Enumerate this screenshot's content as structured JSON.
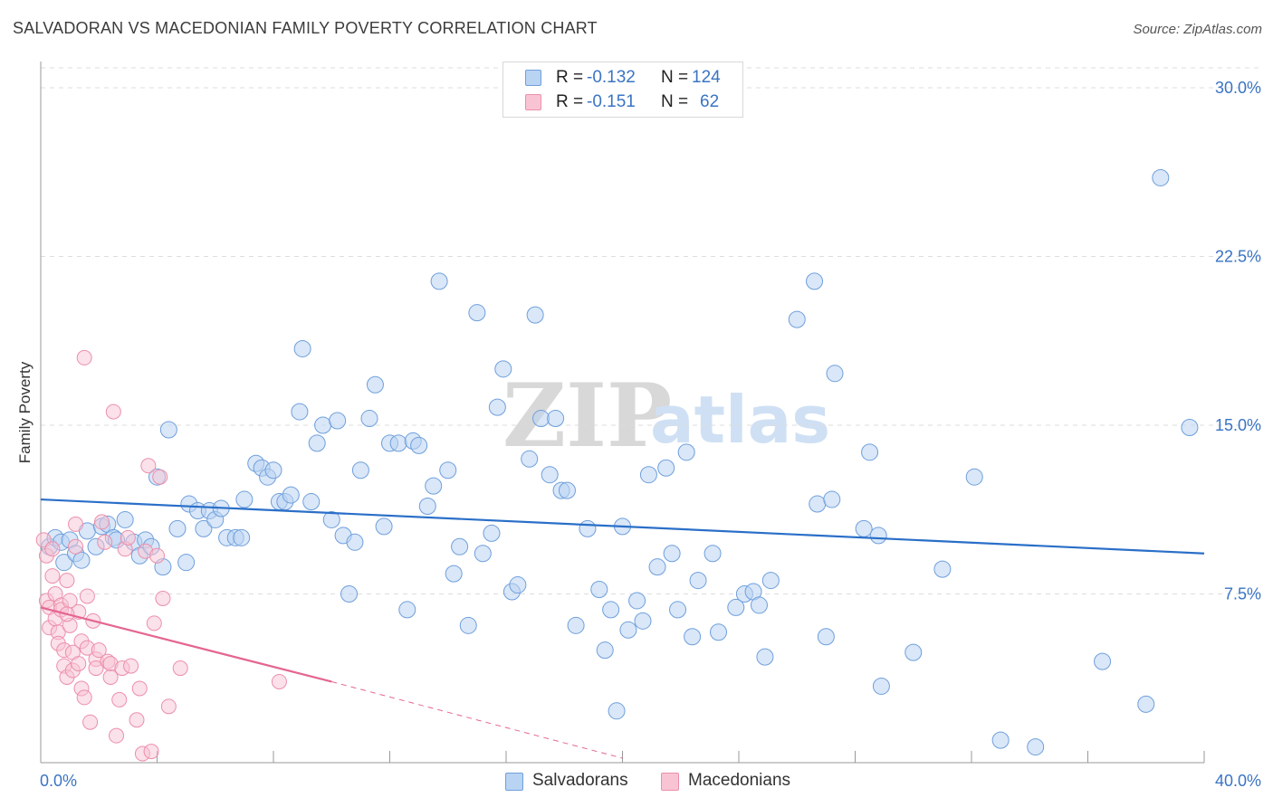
{
  "title": "SALVADORAN VS MACEDONIAN FAMILY POVERTY CORRELATION CHART",
  "source": "Source: ZipAtlas.com",
  "watermark": {
    "zip": "ZIP",
    "atlas": "atlas"
  },
  "legend": {
    "r_label": "R =",
    "n_label": "N =",
    "series": [
      {
        "name": "Salvadorans",
        "r": "-0.132",
        "n": "124"
      },
      {
        "name": "Macedonians",
        "r": "-0.151",
        "n": "62"
      }
    ]
  },
  "colors": {
    "blue_fill": "#b9d3f3",
    "blue_stroke": "#6f9fdc",
    "blue_line": "#2a6fc8",
    "pink_fill": "#f8c4d3",
    "pink_stroke": "#ec8fab",
    "pink_line": "#e46690",
    "axis_label": "#3a74c4",
    "grid": "#dddddd"
  },
  "chart_data": {
    "type": "scatter",
    "title": "SALVADORAN VS MACEDONIAN FAMILY POVERTY CORRELATION CHART",
    "xlabel": "",
    "ylabel": "Family Poverty",
    "xlim": [
      0,
      40
    ],
    "ylim": [
      0,
      30
    ],
    "x_tick_labels": [
      "0.0%",
      "40.0%"
    ],
    "y_ticks": [
      7.5,
      15.0,
      22.5,
      30.0
    ],
    "y_tick_labels": [
      "7.5%",
      "15.0%",
      "22.5%",
      "30.0%"
    ],
    "series": [
      {
        "name": "Salvadorans",
        "trend": {
          "x": [
            0,
            40
          ],
          "y": [
            11.7,
            9.3
          ]
        },
        "points": [
          [
            0.3,
            9.6
          ],
          [
            0.5,
            10.0
          ],
          [
            0.7,
            9.8
          ],
          [
            1.0,
            9.9
          ],
          [
            0.8,
            8.9
          ],
          [
            1.2,
            9.3
          ],
          [
            1.4,
            9.0
          ],
          [
            1.6,
            10.3
          ],
          [
            1.9,
            9.6
          ],
          [
            2.1,
            10.5
          ],
          [
            2.3,
            10.6
          ],
          [
            2.5,
            10.0
          ],
          [
            2.6,
            9.9
          ],
          [
            2.9,
            10.8
          ],
          [
            3.2,
            9.8
          ],
          [
            3.4,
            9.2
          ],
          [
            3.6,
            9.9
          ],
          [
            3.8,
            9.6
          ],
          [
            4.2,
            8.7
          ],
          [
            4.4,
            14.8
          ],
          [
            4.0,
            12.7
          ],
          [
            4.7,
            10.4
          ],
          [
            5.0,
            8.9
          ],
          [
            5.1,
            11.5
          ],
          [
            5.4,
            11.2
          ],
          [
            5.6,
            10.4
          ],
          [
            5.8,
            11.2
          ],
          [
            6.0,
            10.8
          ],
          [
            6.2,
            11.3
          ],
          [
            6.4,
            10.0
          ],
          [
            6.7,
            10.0
          ],
          [
            6.9,
            10.0
          ],
          [
            7.0,
            11.7
          ],
          [
            7.4,
            13.3
          ],
          [
            7.6,
            13.1
          ],
          [
            7.8,
            12.7
          ],
          [
            8.0,
            13.0
          ],
          [
            8.2,
            11.6
          ],
          [
            8.4,
            11.6
          ],
          [
            8.6,
            11.9
          ],
          [
            8.9,
            15.6
          ],
          [
            9.0,
            18.4
          ],
          [
            9.3,
            11.6
          ],
          [
            9.5,
            14.2
          ],
          [
            9.7,
            15.0
          ],
          [
            10.0,
            10.8
          ],
          [
            10.2,
            15.2
          ],
          [
            10.4,
            10.1
          ],
          [
            10.6,
            7.5
          ],
          [
            10.8,
            9.8
          ],
          [
            11.0,
            13.0
          ],
          [
            11.3,
            15.3
          ],
          [
            11.5,
            16.8
          ],
          [
            11.8,
            10.5
          ],
          [
            12.0,
            14.2
          ],
          [
            12.3,
            14.2
          ],
          [
            12.6,
            6.8
          ],
          [
            12.8,
            14.3
          ],
          [
            13.0,
            14.1
          ],
          [
            13.3,
            11.4
          ],
          [
            13.5,
            12.3
          ],
          [
            13.7,
            21.4
          ],
          [
            14.0,
            13.0
          ],
          [
            14.2,
            8.4
          ],
          [
            14.4,
            9.6
          ],
          [
            14.7,
            6.1
          ],
          [
            15.0,
            20.0
          ],
          [
            15.2,
            9.3
          ],
          [
            15.5,
            10.2
          ],
          [
            15.7,
            15.8
          ],
          [
            15.9,
            17.5
          ],
          [
            16.2,
            7.6
          ],
          [
            16.4,
            7.9
          ],
          [
            16.8,
            13.5
          ],
          [
            17.0,
            19.9
          ],
          [
            17.2,
            15.3
          ],
          [
            17.5,
            12.8
          ],
          [
            17.7,
            15.3
          ],
          [
            17.9,
            12.1
          ],
          [
            18.1,
            12.1
          ],
          [
            18.4,
            6.1
          ],
          [
            18.8,
            10.4
          ],
          [
            19.2,
            7.7
          ],
          [
            19.4,
            5.0
          ],
          [
            19.6,
            6.8
          ],
          [
            19.8,
            2.3
          ],
          [
            20.0,
            10.5
          ],
          [
            20.2,
            5.9
          ],
          [
            20.5,
            7.2
          ],
          [
            20.7,
            6.3
          ],
          [
            20.9,
            12.8
          ],
          [
            21.2,
            8.7
          ],
          [
            21.5,
            13.1
          ],
          [
            21.7,
            9.3
          ],
          [
            21.9,
            6.8
          ],
          [
            22.2,
            13.8
          ],
          [
            22.4,
            5.6
          ],
          [
            22.6,
            8.1
          ],
          [
            23.1,
            9.3
          ],
          [
            23.3,
            5.8
          ],
          [
            23.9,
            6.9
          ],
          [
            24.2,
            7.5
          ],
          [
            24.5,
            7.6
          ],
          [
            24.7,
            7.0
          ],
          [
            24.9,
            4.7
          ],
          [
            25.1,
            8.1
          ],
          [
            26.0,
            19.7
          ],
          [
            26.6,
            21.4
          ],
          [
            26.7,
            11.5
          ],
          [
            27.0,
            5.6
          ],
          [
            27.2,
            11.7
          ],
          [
            27.3,
            17.3
          ],
          [
            28.3,
            10.4
          ],
          [
            28.5,
            13.8
          ],
          [
            28.8,
            10.1
          ],
          [
            28.9,
            3.4
          ],
          [
            30.0,
            4.9
          ],
          [
            31.0,
            8.6
          ],
          [
            32.1,
            12.7
          ],
          [
            33.0,
            1.0
          ],
          [
            34.2,
            0.7
          ],
          [
            36.5,
            4.5
          ],
          [
            38.0,
            2.6
          ],
          [
            38.5,
            26.0
          ],
          [
            39.5,
            14.9
          ]
        ]
      },
      {
        "name": "Macedonians",
        "trend": {
          "x": [
            0,
            10
          ],
          "y": [
            6.9,
            3.6
          ]
        },
        "trend_dashed": {
          "x": [
            10,
            20
          ],
          "y": [
            3.6,
            0.2
          ]
        },
        "points": [
          [
            0.1,
            9.9
          ],
          [
            0.2,
            9.2
          ],
          [
            0.2,
            7.2
          ],
          [
            0.3,
            6.9
          ],
          [
            0.3,
            6.0
          ],
          [
            0.4,
            9.5
          ],
          [
            0.4,
            8.3
          ],
          [
            0.5,
            7.5
          ],
          [
            0.5,
            6.4
          ],
          [
            0.6,
            5.8
          ],
          [
            0.6,
            5.3
          ],
          [
            0.7,
            7.0
          ],
          [
            0.7,
            6.8
          ],
          [
            0.8,
            5.0
          ],
          [
            0.8,
            4.3
          ],
          [
            0.9,
            3.8
          ],
          [
            0.9,
            8.1
          ],
          [
            1.0,
            7.2
          ],
          [
            1.0,
            6.1
          ],
          [
            1.1,
            4.9
          ],
          [
            1.1,
            4.1
          ],
          [
            1.2,
            10.6
          ],
          [
            1.2,
            9.6
          ],
          [
            1.3,
            6.7
          ],
          [
            1.3,
            4.4
          ],
          [
            1.4,
            5.4
          ],
          [
            1.4,
            3.3
          ],
          [
            1.5,
            2.9
          ],
          [
            1.5,
            18.0
          ],
          [
            1.6,
            7.4
          ],
          [
            1.6,
            5.1
          ],
          [
            1.7,
            1.8
          ],
          [
            1.8,
            6.3
          ],
          [
            1.9,
            4.6
          ],
          [
            1.9,
            4.2
          ],
          [
            2.0,
            5.0
          ],
          [
            2.1,
            10.7
          ],
          [
            2.2,
            9.8
          ],
          [
            2.3,
            4.5
          ],
          [
            2.4,
            4.4
          ],
          [
            2.4,
            3.8
          ],
          [
            2.5,
            15.6
          ],
          [
            2.6,
            1.2
          ],
          [
            2.7,
            2.8
          ],
          [
            2.8,
            4.2
          ],
          [
            2.9,
            9.5
          ],
          [
            3.0,
            10.0
          ],
          [
            3.1,
            4.3
          ],
          [
            3.3,
            1.9
          ],
          [
            3.4,
            3.3
          ],
          [
            3.5,
            0.4
          ],
          [
            3.6,
            9.4
          ],
          [
            3.7,
            13.2
          ],
          [
            3.8,
            0.5
          ],
          [
            3.9,
            6.2
          ],
          [
            4.0,
            9.2
          ],
          [
            4.1,
            12.7
          ],
          [
            4.2,
            7.3
          ],
          [
            4.4,
            2.5
          ],
          [
            4.8,
            4.2
          ],
          [
            8.2,
            3.6
          ],
          [
            0.9,
            6.6
          ]
        ]
      }
    ]
  }
}
